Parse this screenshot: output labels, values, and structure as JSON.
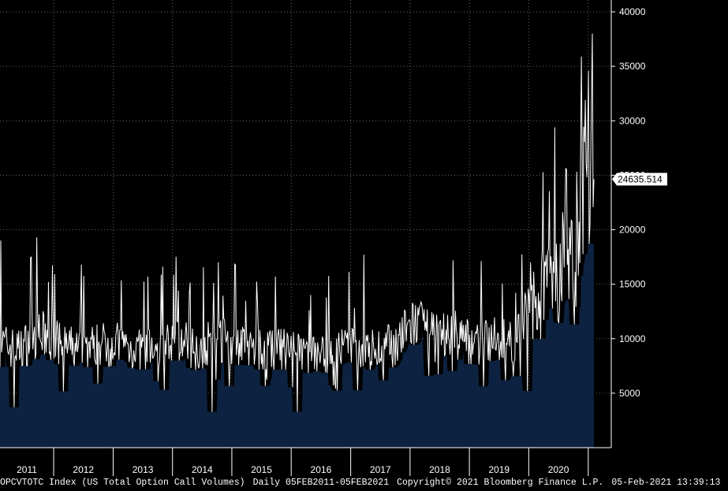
{
  "chart_data": {
    "type": "area",
    "frequency": "Daily",
    "x_range": [
      "2011-02-05",
      "2021-02-05"
    ],
    "ylim": [
      0,
      40000
    ],
    "y_ticks": [
      5000,
      10000,
      15000,
      20000,
      25000,
      30000,
      35000,
      40000
    ],
    "y_tick_labels": [
      "5000",
      "10000",
      "15000",
      "20000",
      "25000",
      "30000",
      "35000",
      "40000"
    ],
    "x_tick_labels": [
      "2011",
      "2012",
      "2013",
      "2014",
      "2015",
      "2016",
      "2017",
      "2018",
      "2019",
      "2020"
    ],
    "grid": true,
    "series": [
      {
        "name": "OPCVTOTC Index",
        "last_value": 24635.514,
        "last_value_label": "24635.514",
        "line_color": "#ffffff",
        "fill_color": "#0d2240",
        "sample_dates": [
          "2011-02-05",
          "2011-06-01",
          "2011-10-01",
          "2012-02-01",
          "2012-06-01",
          "2012-10-01",
          "2013-02-01",
          "2013-06-01",
          "2013-10-01",
          "2014-02-01",
          "2014-06-01",
          "2014-10-01",
          "2015-02-01",
          "2015-06-01",
          "2015-10-01",
          "2016-02-01",
          "2016-06-01",
          "2016-10-01",
          "2017-02-01",
          "2017-06-01",
          "2017-10-01",
          "2018-02-01",
          "2018-06-01",
          "2018-10-01",
          "2019-02-01",
          "2019-06-01",
          "2019-10-01",
          "2020-02-01",
          "2020-06-01",
          "2020-10-01",
          "2021-01-15",
          "2021-02-05"
        ],
        "sample_values": [
          9500,
          9000,
          10500,
          9500,
          9000,
          9500,
          9500,
          9000,
          9000,
          10000,
          9000,
          10000,
          9500,
          9000,
          9000,
          9000,
          8500,
          9000,
          9000,
          9000,
          9500,
          11500,
          10000,
          10500,
          9500,
          10000,
          9500,
          14000,
          16000,
          16500,
          28000,
          24635.514
        ],
        "notable_peaks": [
          {
            "date": "2011-02-08",
            "value": 19000
          },
          {
            "date": "2011-09-20",
            "value": 19300
          },
          {
            "date": "2012-06-20",
            "value": 16800
          },
          {
            "date": "2015-09-25",
            "value": 15700
          },
          {
            "date": "2017-03-22",
            "value": 17700
          },
          {
            "date": "2020-06-10",
            "value": 29400
          },
          {
            "date": "2020-08-20",
            "value": 25500
          },
          {
            "date": "2020-11-20",
            "value": 35900
          },
          {
            "date": "2021-01-27",
            "value": 38000
          }
        ],
        "notable_troughs": [
          {
            "date": "2011-05-02",
            "value": 3700
          },
          {
            "date": "2014-09-02",
            "value": 3300
          },
          {
            "date": "2016-02-10",
            "value": 3300
          },
          {
            "date": "2019-12-26",
            "value": 5200
          }
        ]
      }
    ]
  },
  "footer": {
    "ticker": "OPCVTOTC Index (US Total Option Call Volumes)",
    "range": "Daily 05FEB2011-05FEB2021",
    "copyright": "Copyright© 2021 Bloomberg Finance L.P.",
    "timestamp": "05-Feb-2021 13:39:13"
  }
}
